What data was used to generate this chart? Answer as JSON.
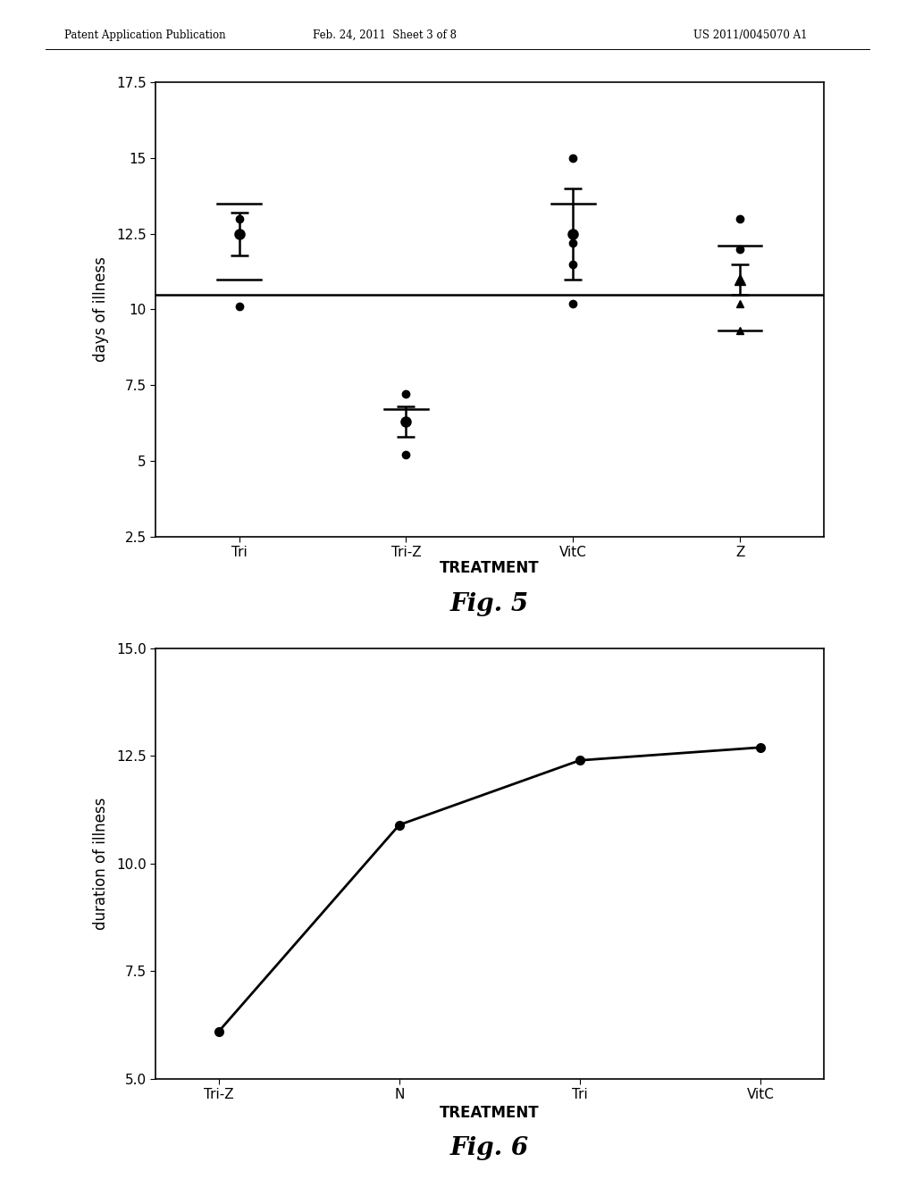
{
  "header_left": "Patent Application Publication",
  "header_mid": "Feb. 24, 2011  Sheet 3 of 8",
  "header_right": "US 2011/0045070 A1",
  "fig5": {
    "ylabel": "days of illness",
    "xlabel": "TREATMENT",
    "figcaption": "Fig. 5",
    "ylim": [
      2.5,
      17.5
    ],
    "yticks": [
      2.5,
      5.0,
      7.5,
      10.0,
      12.5,
      15.0,
      17.5
    ],
    "ytick_labels": [
      "2.5",
      "5",
      "7.5",
      "10",
      "12.5",
      "15",
      "17.5"
    ],
    "categories": [
      "Tri",
      "Tri-Z",
      "VitC",
      "Z"
    ],
    "ref_line_y": 10.5,
    "groups": {
      "Tri": {
        "dots": [
          10.1,
          13.0
        ],
        "dot_markers": [
          "o",
          "o"
        ],
        "hlines": [
          11.0,
          13.5
        ],
        "mean": 12.5,
        "se_low": 11.8,
        "se_high": 13.2,
        "mean_marker": "o"
      },
      "Tri-Z": {
        "dots": [
          5.2,
          7.2
        ],
        "dot_markers": [
          "o",
          "o"
        ],
        "hlines": [
          6.7
        ],
        "mean": 6.3,
        "se_low": 5.8,
        "se_high": 6.8,
        "mean_marker": "o"
      },
      "VitC": {
        "dots": [
          10.2,
          11.5,
          12.2,
          15.0
        ],
        "dot_markers": [
          "o",
          "o",
          "o",
          "o"
        ],
        "hlines": [
          13.5
        ],
        "mean": 12.5,
        "se_low": 11.0,
        "se_high": 14.0,
        "mean_marker": "o"
      },
      "Z": {
        "dots": [
          9.3,
          10.2,
          11.0,
          12.0,
          13.0
        ],
        "dot_markers": [
          "^",
          "^",
          "^",
          "o",
          "o"
        ],
        "hlines": [
          9.3,
          12.1
        ],
        "mean": 11.0,
        "se_low": 10.5,
        "se_high": 11.5,
        "mean_marker": "^"
      }
    }
  },
  "fig6": {
    "ylabel": "duration of illness",
    "xlabel": "TREATMENT",
    "figcaption": "Fig. 6",
    "ylim": [
      5.0,
      15.0
    ],
    "yticks": [
      5.0,
      7.5,
      10.0,
      12.5,
      15.0
    ],
    "ytick_labels": [
      "5.0",
      "7.5",
      "10.0",
      "12.5",
      "15.0"
    ],
    "categories": [
      "Tri-Z",
      "N",
      "Tri",
      "VitC"
    ],
    "values": [
      6.1,
      10.9,
      12.4,
      12.7
    ]
  },
  "bg_color": "#ffffff",
  "text_color": "#000000",
  "plot_bg": "#ffffff",
  "spine_color": "#000000"
}
